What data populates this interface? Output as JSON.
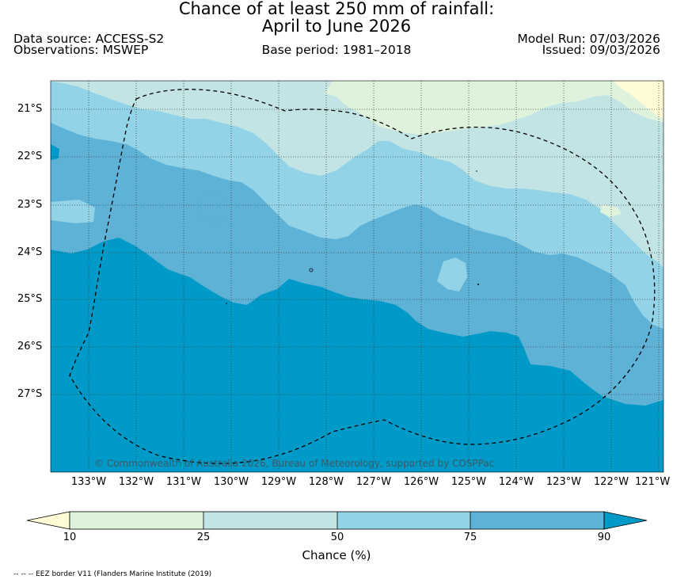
{
  "header": {
    "title_line1": "Chance of at least 250 mm of rainfall:",
    "title_line2": "April to June 2026",
    "data_source": "Data source: ACCESS-S2",
    "observations": "Observations: MSWEP",
    "base_period": "Base period: 1981–2018",
    "model_run": "Model Run: 07/03/2026",
    "issued": "Issued: 09/03/2026"
  },
  "map": {
    "lat_labels": [
      "21°S",
      "22°S",
      "23°S",
      "24°S",
      "25°S",
      "26°S",
      "27°S"
    ],
    "lon_labels": [
      "133°W",
      "132°W",
      "131°W",
      "130°W",
      "129°W",
      "128°W",
      "127°W",
      "126°W",
      "125°W",
      "124°W",
      "123°W",
      "122°W",
      "121°W"
    ],
    "copyright": "© Commonwealth of Australia 2026, Bureau of Meteorology, supported by COSPPac",
    "class_colors": [
      "#fffbd4",
      "#dff3dc",
      "#c3e4e4",
      "#92d3e8",
      "#5db2d6",
      "#009ac8"
    ],
    "eez_line_color": "#000000"
  },
  "colorbar": {
    "ticks": [
      "10",
      "25",
      "50",
      "75",
      "90"
    ],
    "label": "Chance (%)"
  },
  "footer": {
    "legend_note": "-- -- -- EEZ border V11 (Flanders Marine Institute (2019)"
  }
}
